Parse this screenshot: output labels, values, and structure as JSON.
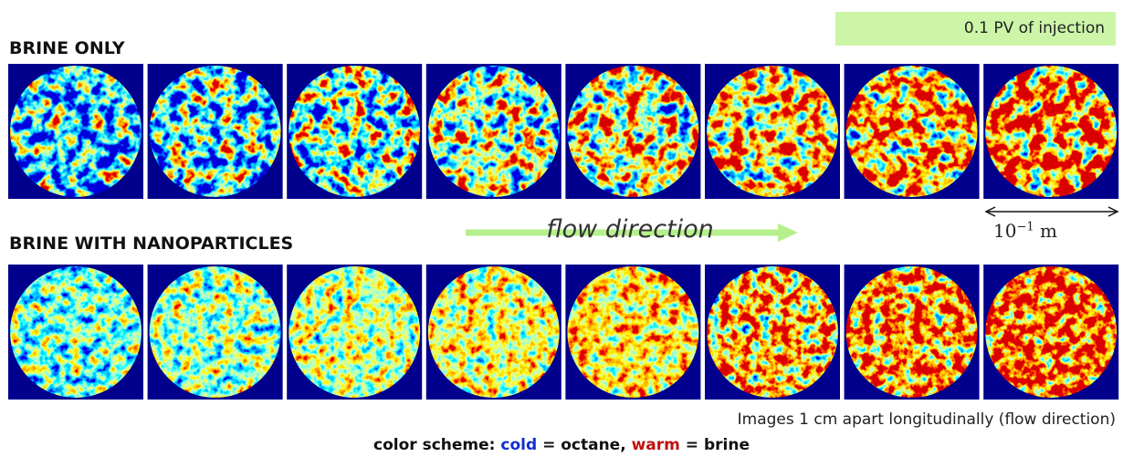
{
  "header": {
    "badge": "0.1 PV of injection"
  },
  "rows": [
    {
      "label": "BRINE ONLY"
    },
    {
      "label": "BRINE WITH NANOPARTICLES"
    }
  ],
  "flow_label": "flow direction",
  "scale": {
    "base": "10",
    "exponent": "−1",
    "unit": "m"
  },
  "caption": "Images 1 cm apart longitudinally (flow direction)",
  "legend": {
    "prefix": "color scheme:",
    "cold": "cold",
    "cold_meaning": "= octane,",
    "warm": "warm",
    "warm_meaning": "= brine"
  }
}
